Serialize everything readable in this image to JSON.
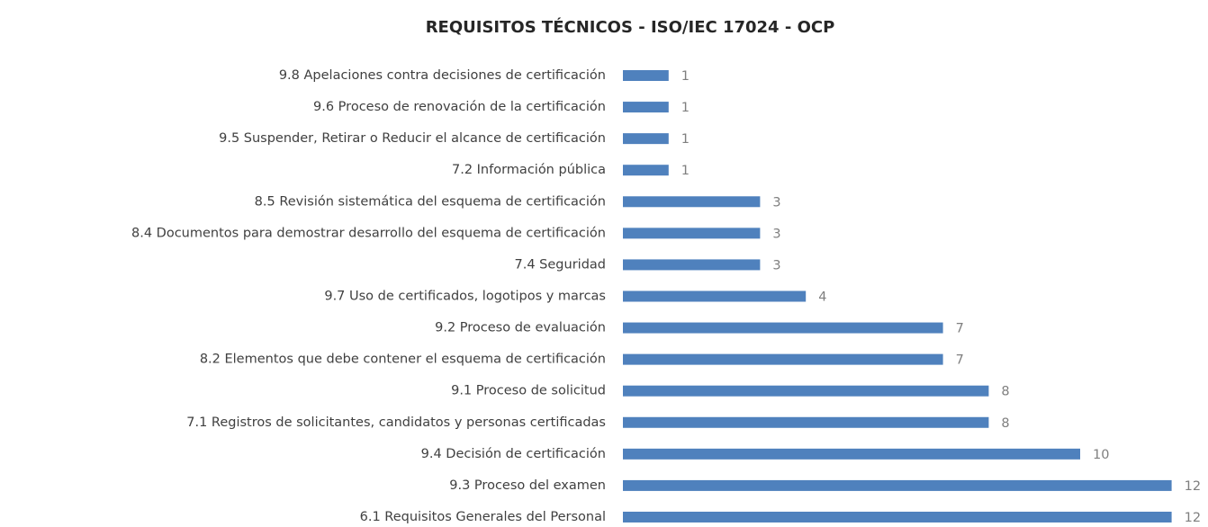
{
  "chart_data": {
    "type": "barh",
    "title": "REQUISITOS TÉCNICOS - ISO/IEC 17024 - OCP",
    "categories": [
      "9.8 Apelaciones contra decisiones de certificación",
      "9.6 Proceso de renovación de la certificación",
      "9.5 Suspender, Retirar o Reducir el alcance de certificación",
      "7.2 Información pública",
      "8.5 Revisión sistemática del esquema de certificación",
      "8.4 Documentos para demostrar desarrollo del esquema de certificación",
      "7.4 Seguridad",
      "9.7 Uso de certificados, logotipos y marcas",
      "9.2 Proceso de evaluación",
      "8.2 Elementos que debe contener el esquema de certificación",
      "9.1 Proceso de solicitud",
      "7.1 Registros de solicitantes, candidatos y personas certificadas",
      "9.4 Decisión de certificación",
      "9.3 Proceso del examen",
      "6.1 Requisitos Generales del Personal"
    ],
    "values": [
      1,
      1,
      1,
      1,
      3,
      3,
      3,
      4,
      7,
      7,
      8,
      8,
      10,
      12,
      12
    ],
    "color": "#4f81bd"
  }
}
